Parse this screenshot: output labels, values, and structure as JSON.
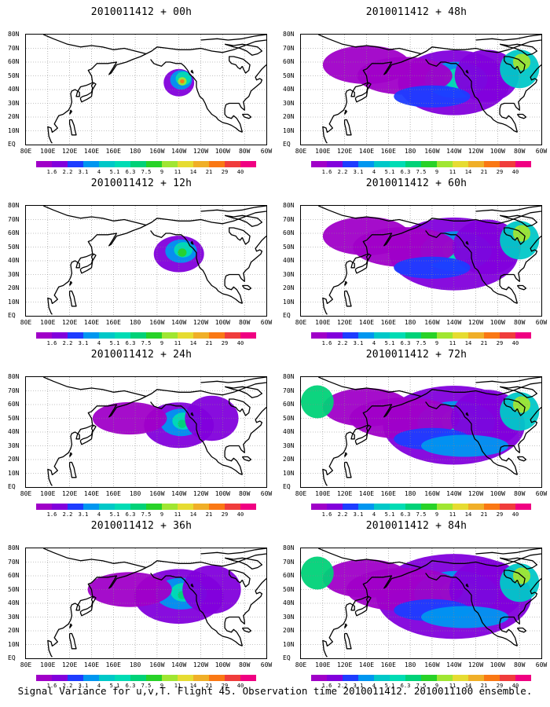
{
  "panels": [
    {
      "title": "2010011412 + 00h",
      "spread": 0.0
    },
    {
      "title": "2010011412 + 48h",
      "spread": 0.62
    },
    {
      "title": "2010011412 + 12h",
      "spread": 0.15
    },
    {
      "title": "2010011412 + 60h",
      "spread": 0.75
    },
    {
      "title": "2010011412 + 24h",
      "spread": 0.3
    },
    {
      "title": "2010011412 + 72h",
      "spread": 0.85
    },
    {
      "title": "2010011412 + 36h",
      "spread": 0.45
    },
    {
      "title": "2010011412 + 84h",
      "spread": 0.95
    }
  ],
  "map": {
    "lat_labels": [
      "80N",
      "70N",
      "60N",
      "50N",
      "40N",
      "30N",
      "20N",
      "10N",
      "EQ"
    ],
    "lon_labels": [
      "80E",
      "100E",
      "120E",
      "140E",
      "160E",
      "180",
      "160W",
      "140W",
      "120W",
      "100W",
      "80W",
      "60W"
    ],
    "lon_range": [
      80,
      300
    ],
    "lat_range": [
      0,
      80
    ]
  },
  "colorbar": {
    "levels": [
      "1.6",
      "2.2",
      "3.1",
      "4",
      "5.1",
      "6.3",
      "7.5",
      "9",
      "11",
      "14",
      "21",
      "29",
      "40"
    ],
    "colors": [
      "#a000c8",
      "#8200dc",
      "#1e3cff",
      "#0096f0",
      "#00c8c8",
      "#00dcb4",
      "#00d278",
      "#28d228",
      "#a0e632",
      "#e6dc32",
      "#f0af28",
      "#fa7814",
      "#f03c3c",
      "#f00082"
    ]
  },
  "footer": "Signal Variance for u,v,T. Flight 45. Observation time 2010011412. 2010011100 ensemble."
}
